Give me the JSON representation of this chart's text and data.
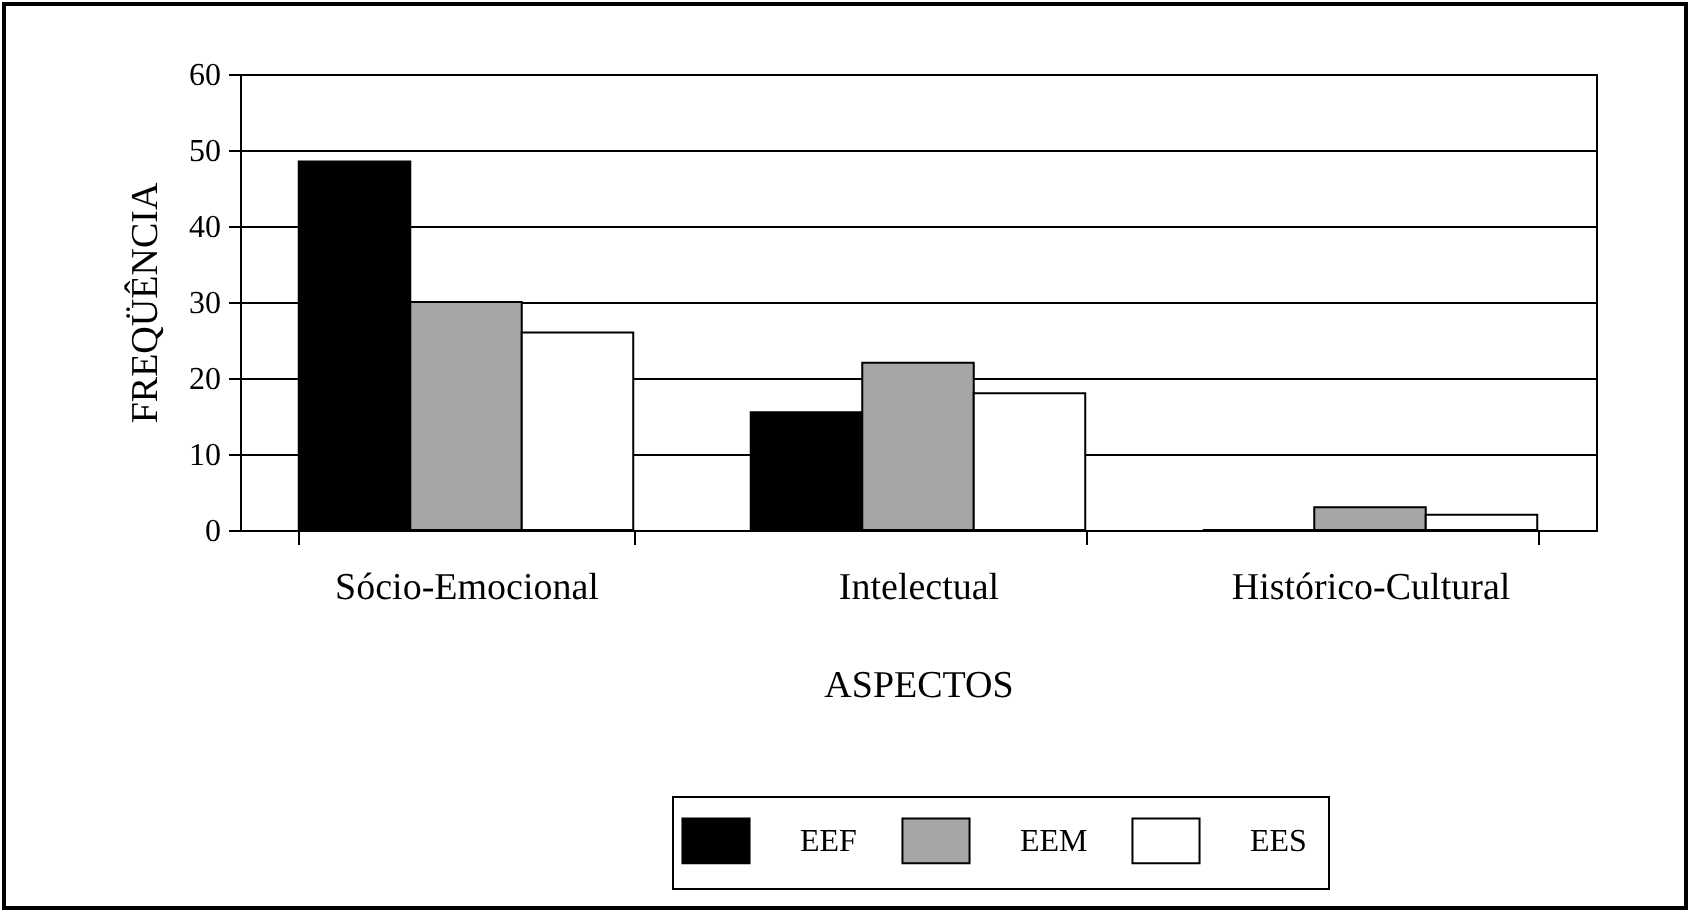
{
  "chart_data": {
    "type": "bar",
    "xlabel": "ASPECTOS",
    "ylabel": "FREQÜÊNCIA",
    "categories": [
      "Sócio-Emocional",
      "Intelectual",
      "Histórico-Cultural"
    ],
    "series": [
      {
        "name": "EEF",
        "color": "#000000",
        "values": [
          48.5,
          15.5,
          0
        ]
      },
      {
        "name": "EEM",
        "color": "#a6a6a6",
        "values": [
          30,
          22,
          3
        ]
      },
      {
        "name": "EES",
        "color": "#ffffff",
        "values": [
          26,
          18,
          2
        ]
      }
    ],
    "ylim": [
      0,
      60
    ],
    "yticks": [
      0,
      10,
      20,
      30,
      40,
      50,
      60
    ],
    "grid": "y",
    "legend": "bottom right"
  }
}
